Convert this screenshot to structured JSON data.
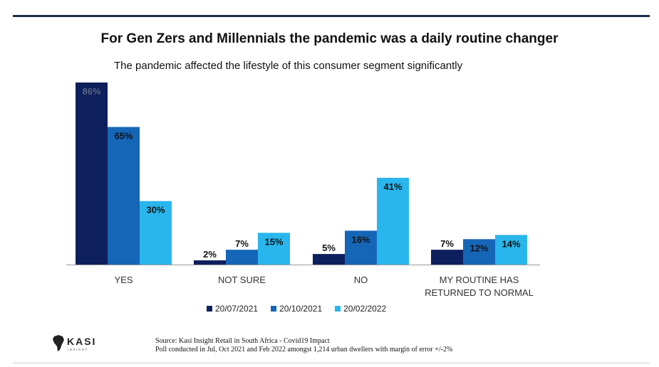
{
  "header": {
    "title": "For Gen Zers and Millennials the pandemic was a daily routine changer",
    "subtitle": "The pandemic affected the lifestyle of this consumer segment significantly"
  },
  "chart_data": {
    "type": "bar",
    "title": "For Gen Zers and Millennials the pandemic was a daily routine changer",
    "subtitle": "The pandemic affected the lifestyle of this consumer segment significantly",
    "categories": [
      [
        "YES"
      ],
      [
        "NOT SURE"
      ],
      [
        "NO"
      ],
      [
        "MY ROUTINE HAS",
        "RETURNED TO NORMAL"
      ]
    ],
    "series": [
      {
        "name": "20/07/2021",
        "color": "#0d1f5c",
        "values": [
          86,
          2,
          5,
          7
        ],
        "labels": [
          "86%",
          "2%",
          "5%",
          "7%"
        ]
      },
      {
        "name": "20/10/2021",
        "color": "#1566b7",
        "values": [
          65,
          7,
          16,
          12
        ],
        "labels": [
          "65%",
          "7%",
          "16%",
          "12%"
        ]
      },
      {
        "name": "20/02/2022",
        "color": "#29b6ec",
        "values": [
          30,
          15,
          41,
          14
        ],
        "labels": [
          "30%",
          "15%",
          "41%",
          "14%"
        ]
      }
    ],
    "ylim": [
      0,
      86
    ],
    "grid": false,
    "legend_position": "bottom",
    "xlabel": "",
    "ylabel": ""
  },
  "footer": {
    "line1": "Source: Kasi Insight  Retail in South Africa - Covid19 Impact",
    "line2": "Poll conducted in Jul, Oct 2021 and Feb 2022  amongst 1,214 urban dwellers with margin of error +/-2%"
  },
  "logo": {
    "name": "KASI",
    "tagline": "INSIGHT"
  }
}
